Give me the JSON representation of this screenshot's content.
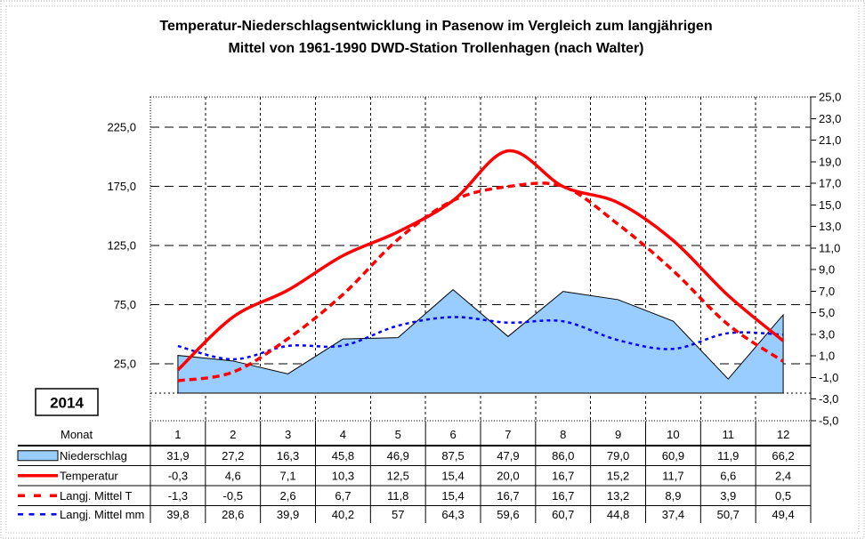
{
  "title": {
    "line1": "Temperatur-Niederschlagsentwicklung in Pasenow im Vergleich zum langjährigen",
    "line2": "Mittel von 1961-1990 DWD-Station Trollenhagen (nach Walter)"
  },
  "year_box": {
    "label": "2014"
  },
  "chart_data": {
    "type": "combo-area-line",
    "categories_label": "Monat",
    "categories": [
      "1",
      "2",
      "3",
      "4",
      "5",
      "6",
      "7",
      "8",
      "9",
      "10",
      "11",
      "12"
    ],
    "left_axis": {
      "unit": "mm",
      "tick_labels": [
        "225,0",
        "175,0",
        "125,0",
        "75,0",
        "25,0"
      ],
      "tick_values": [
        225,
        175,
        125,
        75,
        25
      ],
      "zero_line_value": 0
    },
    "right_axis": {
      "unit": "degC",
      "max": 25,
      "min": -5,
      "step": 2,
      "tick_labels": [
        "25,0",
        "23,0",
        "21,0",
        "19,0",
        "17,0",
        "15,0",
        "13,0",
        "11,0",
        "9,0",
        "7,0",
        "5,0",
        "3,0",
        "1,0",
        "-1,0",
        "-3,0",
        "-5,0"
      ]
    },
    "grid": {
      "horizontal": true,
      "vertical": true
    },
    "series": [
      {
        "name": "Niederschlag",
        "kind": "area",
        "axis": "mm",
        "smooth": false,
        "color": "#000000",
        "fill": "#99CCFF",
        "width": 1,
        "dash": "",
        "z": 0,
        "values": [
          "31,9",
          "27,2",
          "16,3",
          "45,8",
          "46,9",
          "87,5",
          "47,9",
          "86,0",
          "79,0",
          "60,9",
          "11,9",
          "66,2"
        ]
      },
      {
        "name": "Temperatur",
        "kind": "line",
        "axis": "temp",
        "smooth": true,
        "color": "#FF0000",
        "fill": "none",
        "width": 3.5,
        "dash": "",
        "z": 3,
        "values": [
          "-0,3",
          "4,6",
          "7,1",
          "10,3",
          "12,5",
          "15,4",
          "20,0",
          "16,7",
          "15,2",
          "11,7",
          "6,6",
          "2,4"
        ]
      },
      {
        "name": "Langj. Mittel T",
        "kind": "line",
        "axis": "temp",
        "smooth": true,
        "color": "#FF0000",
        "fill": "none",
        "width": 3.5,
        "dash": "8,5",
        "z": 2,
        "values": [
          "-1,3",
          "-0,5",
          "2,6",
          "6,7",
          "11,8",
          "15,4",
          "16,7",
          "16,7",
          "13,2",
          "8,9",
          "3,9",
          "0,5"
        ]
      },
      {
        "name": "Langj. Mittel mm",
        "kind": "line",
        "axis": "mm",
        "smooth": true,
        "color": "#0000FF",
        "fill": "none",
        "width": 2.5,
        "dash": "4,4",
        "z": 1,
        "values": [
          "39,8",
          "28,6",
          "39,9",
          "40,2",
          "57",
          "64,3",
          "59,6",
          "60,7",
          "44,8",
          "37,4",
          "50,7",
          "49,4"
        ]
      }
    ]
  }
}
